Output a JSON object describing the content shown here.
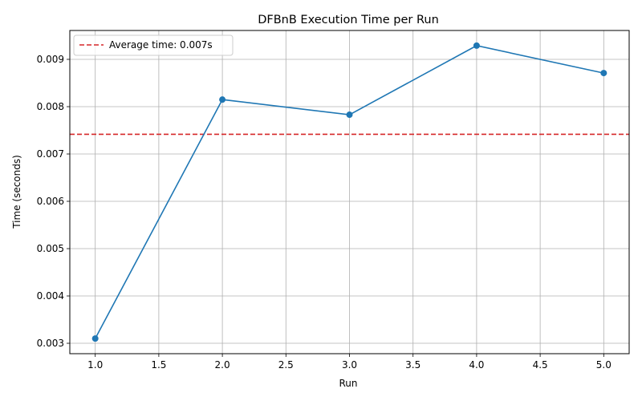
{
  "chart_data": {
    "type": "line",
    "title": "DFBnB Execution Time per Run",
    "xlabel": "Run",
    "ylabel": "Time (seconds)",
    "xlim": [
      0.8,
      5.2
    ],
    "ylim": [
      0.00278,
      0.00961
    ],
    "xticks": [
      1.0,
      1.5,
      2.0,
      2.5,
      3.0,
      3.5,
      4.0,
      4.5,
      5.0
    ],
    "xtick_labels": [
      "1.0",
      "1.5",
      "2.0",
      "2.5",
      "3.0",
      "3.5",
      "4.0",
      "4.5",
      "5.0"
    ],
    "yticks": [
      0.003,
      0.004,
      0.005,
      0.006,
      0.007,
      0.008,
      0.009
    ],
    "ytick_labels": [
      "0.003",
      "0.004",
      "0.005",
      "0.006",
      "0.007",
      "0.008",
      "0.009"
    ],
    "grid": true,
    "legend_position": "top-left",
    "series": [
      {
        "x": [
          1,
          2,
          3,
          4,
          5
        ],
        "y": [
          0.0031,
          0.00815,
          0.00783,
          0.00929,
          0.00871
        ],
        "color": "#1f77b4",
        "marker": "circle"
      }
    ],
    "reference_lines": [
      {
        "name": "Average time: 0.007s",
        "y": 0.007416,
        "color": "#d62728",
        "style": "dashed"
      }
    ]
  }
}
